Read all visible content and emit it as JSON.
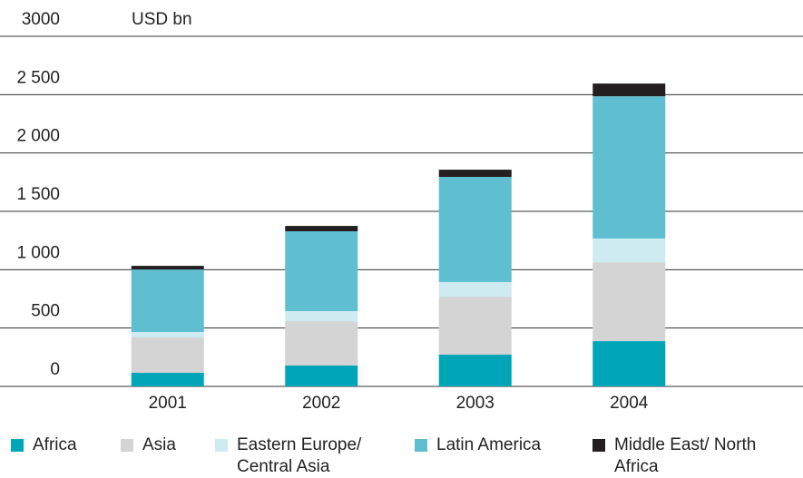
{
  "chart_data": {
    "type": "stacked-bar",
    "y_unit": "USD bn",
    "categories": [
      "2001",
      "2002",
      "2003",
      "2004"
    ],
    "series": [
      {
        "name": "Africa",
        "color": "#00a5b8",
        "values": [
          117,
          179,
          272,
          388
        ]
      },
      {
        "name": "Asia",
        "color": "#d4d4d4",
        "values": [
          303,
          380,
          497,
          676
        ]
      },
      {
        "name": "Eastern Europe/ Central Asia",
        "color": "#cdebf1",
        "values": [
          46,
          86,
          125,
          203
        ]
      },
      {
        "name": "Latin America",
        "color": "#5fbfd0",
        "values": [
          536,
          684,
          901,
          1219
        ]
      },
      {
        "name": "Middle East/ North Africa",
        "color": "#231f20",
        "values": [
          31,
          46,
          62,
          109
        ]
      }
    ],
    "ylim": [
      0,
      3000
    ],
    "yticks": [
      0,
      500,
      {
        "value": 1000,
        "label": "1 000"
      },
      {
        "value": 1500,
        "label": "1 500"
      },
      {
        "value": 2000,
        "label": "2 000"
      },
      {
        "value": 2500,
        "label": "2 500"
      },
      3000
    ],
    "grid": true,
    "legend": "bottom"
  }
}
